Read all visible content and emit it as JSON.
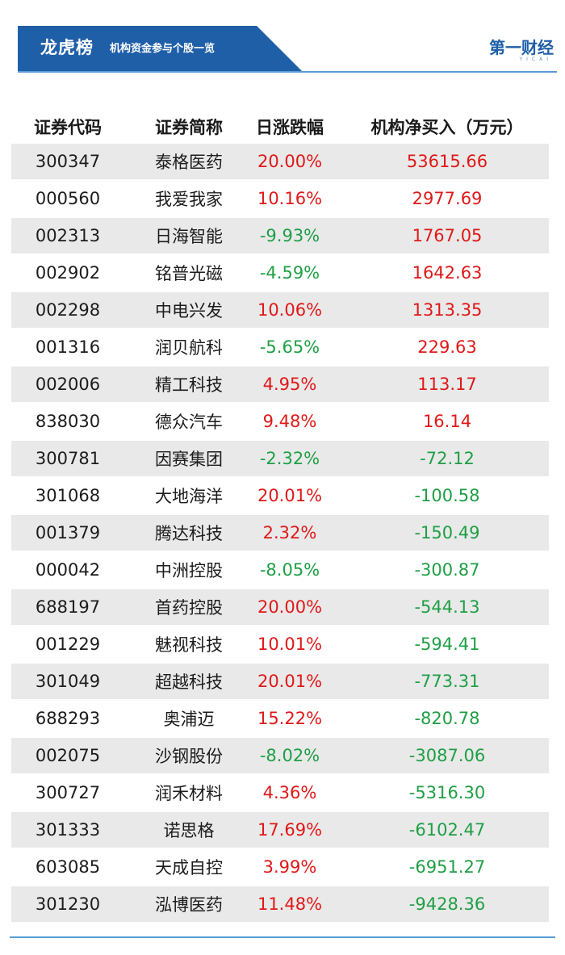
{
  "header": {
    "title": "龙虎榜",
    "subtitle": "机构资金参与个股一览",
    "logo_main": "第一财经",
    "logo_sub": "YICAI",
    "brand_color": "#1f5fa8"
  },
  "table": {
    "columns": [
      "证券代码",
      "证券简称",
      "日涨跌幅",
      "机构净买入（万元）"
    ],
    "rows": [
      {
        "code": "300347",
        "name": "泰格医药",
        "change": "20.00%",
        "net_buy": "53615.66"
      },
      {
        "code": "000560",
        "name": "我爱我家",
        "change": "10.16%",
        "net_buy": "2977.69"
      },
      {
        "code": "002313",
        "name": "日海智能",
        "change": "-9.93%",
        "net_buy": "1767.05"
      },
      {
        "code": "002902",
        "name": "铭普光磁",
        "change": "-4.59%",
        "net_buy": "1642.63"
      },
      {
        "code": "002298",
        "name": "中电兴发",
        "change": "10.06%",
        "net_buy": "1313.35"
      },
      {
        "code": "001316",
        "name": "润贝航科",
        "change": "-5.65%",
        "net_buy": "229.63"
      },
      {
        "code": "002006",
        "name": "精工科技",
        "change": "4.95%",
        "net_buy": "113.17"
      },
      {
        "code": "838030",
        "name": "德众汽车",
        "change": "9.48%",
        "net_buy": "16.14"
      },
      {
        "code": "300781",
        "name": "因赛集团",
        "change": "-2.32%",
        "net_buy": "-72.12"
      },
      {
        "code": "301068",
        "name": "大地海洋",
        "change": "20.01%",
        "net_buy": "-100.58"
      },
      {
        "code": "001379",
        "name": "腾达科技",
        "change": "2.32%",
        "net_buy": "-150.49"
      },
      {
        "code": "000042",
        "name": "中洲控股",
        "change": "-8.05%",
        "net_buy": "-300.87"
      },
      {
        "code": "688197",
        "name": "首药控股",
        "change": "20.00%",
        "net_buy": "-544.13"
      },
      {
        "code": "001229",
        "name": "魅视科技",
        "change": "10.01%",
        "net_buy": "-594.41"
      },
      {
        "code": "301049",
        "name": "超越科技",
        "change": "20.01%",
        "net_buy": "-773.31"
      },
      {
        "code": "688293",
        "name": "奥浦迈",
        "change": "15.22%",
        "net_buy": "-820.78"
      },
      {
        "code": "002075",
        "name": "沙钢股份",
        "change": "-8.02%",
        "net_buy": "-3087.06"
      },
      {
        "code": "300727",
        "name": "润禾材料",
        "change": "4.36%",
        "net_buy": "-5316.30"
      },
      {
        "code": "301333",
        "name": "诺思格",
        "change": "17.69%",
        "net_buy": "-6102.47"
      },
      {
        "code": "603085",
        "name": "天成自控",
        "change": "3.99%",
        "net_buy": "-6951.27"
      },
      {
        "code": "301230",
        "name": "泓博医药",
        "change": "11.48%",
        "net_buy": "-9428.36"
      }
    ]
  },
  "colors": {
    "up": "#e01818",
    "down": "#1f9f45",
    "row_shade": "#e9e9e9"
  }
}
